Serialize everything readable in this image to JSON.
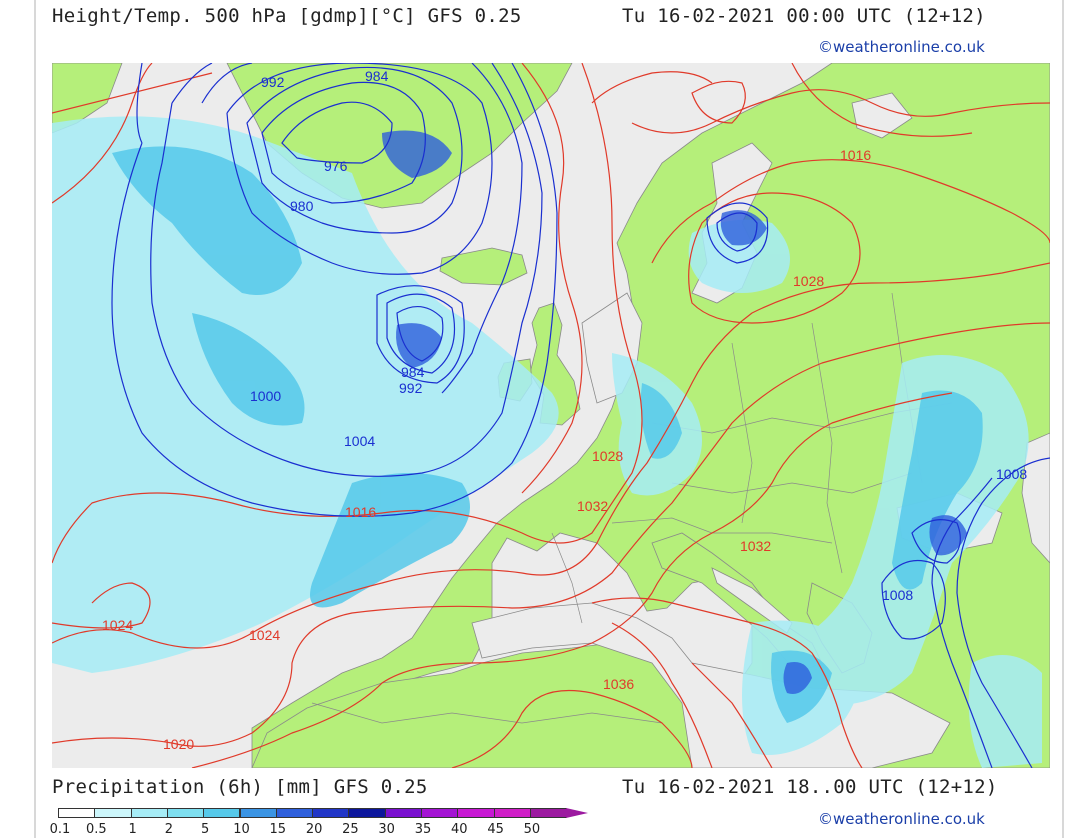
{
  "header_top": {
    "left": "Height/Temp. 500 hPa [gdmp][°C] GFS 0.25",
    "right": "Tu 16-02-2021 00:00 UTC (12+12)",
    "credit": "©weatheronline.co.uk"
  },
  "header_bottom": {
    "left": "Precipitation (6h) [mm] GFS 0.25",
    "right": "Tu 16-02-2021 18..00 UTC (12+12)",
    "credit": "©weatheronline.co.uk"
  },
  "map": {
    "colors": {
      "sea": "#ececec",
      "land": "#b5ef7a",
      "isobar_high": "#e03a2a",
      "isobar_low": "#1a2fd0",
      "border": "#8a8a8a"
    },
    "isobar_labels": [
      "992",
      "984",
      "976",
      "980",
      "984",
      "992",
      "1000",
      "1004",
      "1016",
      "1024",
      "1024",
      "1020",
      "1016",
      "1028",
      "1028",
      "1032",
      "1032",
      "1036",
      "1008",
      "1008"
    ]
  },
  "legend": {
    "labels": [
      "0.1",
      "0.5",
      "1",
      "2",
      "5",
      "10",
      "15",
      "20",
      "25",
      "30",
      "35",
      "40",
      "45",
      "50"
    ],
    "colors": [
      "#ffffff",
      "#ccf6fb",
      "#a6ecf6",
      "#7edff0",
      "#56c9ea",
      "#3a94e4",
      "#2e5fdc",
      "#2136c8",
      "#0c169c",
      "#7a10d0",
      "#a414d4",
      "#c818d4",
      "#d01ec8",
      "#9c1aa0"
    ]
  }
}
